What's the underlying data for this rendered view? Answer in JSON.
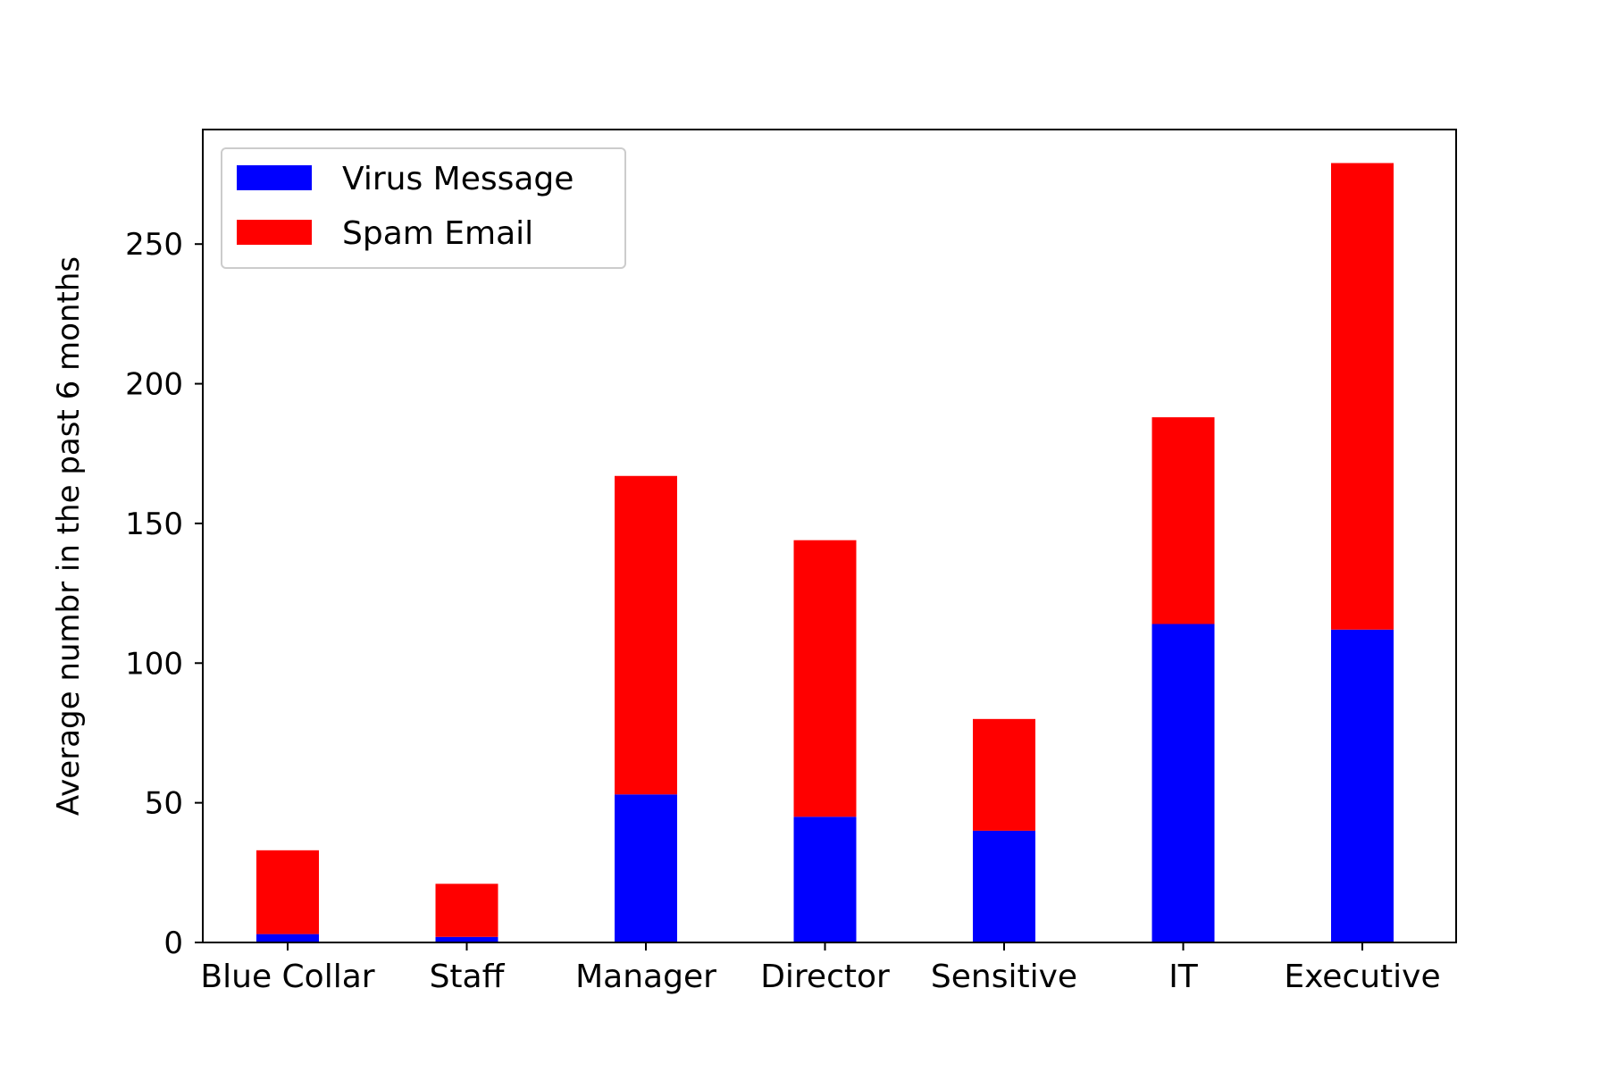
{
  "chart_data": {
    "type": "bar",
    "stacked": true,
    "title": "",
    "xlabel": "",
    "ylabel": "Average numbr in the past 6 months",
    "categories": [
      "Blue Collar",
      "Staff",
      "Manager",
      "Director",
      "Sensitive",
      "IT",
      "Executive"
    ],
    "series": [
      {
        "name": "Virus Message",
        "color": "#0000ff",
        "values": [
          3,
          2,
          53,
          45,
          40,
          114,
          112
        ]
      },
      {
        "name": "Spam Email",
        "color": "#ff0000",
        "values": [
          30,
          19,
          114,
          99,
          40,
          74,
          167
        ]
      }
    ],
    "ylim": [
      0,
      291
    ],
    "yticks": [
      0,
      50,
      100,
      150,
      200,
      250
    ],
    "grid": false,
    "legend_position": "top-left"
  }
}
